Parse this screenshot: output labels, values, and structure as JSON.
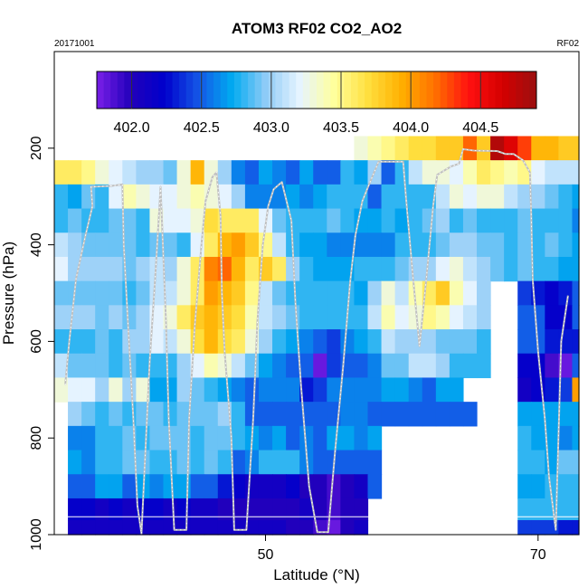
{
  "chart_data": {
    "type": "heatmap",
    "title": "ATOM3 RF02 CO2_AO2",
    "left_note": "20171001",
    "right_note": "RF02",
    "xlabel": "Latitude (°N)",
    "ylabel": "Pressure (hPa)",
    "xlim": [
      34.5,
      73.0
    ],
    "ylim": [
      1000,
      0
    ],
    "x_ticks": [
      50,
      70
    ],
    "y_ticks": [
      200,
      400,
      600,
      800,
      1000
    ],
    "colorbar": {
      "range": [
        401.75,
        404.9
      ],
      "ticks": [
        402.0,
        402.5,
        403.0,
        403.5,
        404.0,
        404.5
      ],
      "tick_labels": [
        "402.0",
        "402.5",
        "403.0",
        "403.5",
        "404.0",
        "404.5"
      ],
      "colors": [
        "#7a1fe8",
        "#2200bb",
        "#0000cc",
        "#1456e6",
        "#00aaf0",
        "#90ccf7",
        "#e6f4ff",
        "#ffff9e",
        "#ffe040",
        "#ffb000",
        "#ff7000",
        "#ff1010",
        "#d40000",
        "#9a1010"
      ]
    },
    "levels_hPa": [
      200,
      250,
      300,
      350,
      400,
      450,
      500,
      550,
      600,
      650,
      700,
      750,
      800,
      850,
      900,
      950,
      990
    ],
    "lat_edges": [
      34.5,
      35.5,
      36.5,
      37.5,
      38.5,
      39.5,
      40.5,
      41.5,
      42.5,
      43.5,
      44.5,
      45.5,
      46.5,
      47.5,
      48.5,
      49.5,
      50.5,
      51.5,
      52.5,
      53.5,
      54.5,
      55.5,
      56.5,
      57.5,
      58.5,
      59.5,
      60.5,
      61.5,
      62.5,
      63.5,
      64.5,
      65.5,
      66.5,
      67.5,
      68.5,
      69.5,
      70.5,
      71.5,
      72.5,
      73.0
    ],
    "co2_ppm": [
      [
        null,
        null,
        null,
        null,
        null,
        null,
        null,
        null,
        null,
        null,
        null,
        null,
        null,
        null,
        null,
        null,
        null,
        null,
        null,
        null,
        null,
        null,
        403.3,
        403.4,
        403.5,
        403.6,
        403.7,
        403.7,
        403.8,
        403.8,
        404.2,
        403.8,
        404.8,
        404.6,
        404.3,
        403.9,
        403.9,
        403.8,
        403.8
      ],
      [
        403.6,
        403.6,
        403.5,
        403.3,
        403.2,
        403.1,
        403.0,
        403.0,
        402.9,
        403.3,
        403.9,
        403.3,
        403.0,
        402.6,
        402.5,
        402.7,
        402.6,
        402.5,
        402.7,
        402.5,
        402.5,
        402.8,
        402.7,
        403.0,
        402.5,
        402.8,
        403.1,
        403.3,
        403.3,
        403.2,
        403.4,
        403.6,
        403.5,
        403.4,
        403.5,
        403.2,
        403.1,
        403.1,
        403.1
      ],
      [
        402.8,
        402.7,
        402.9,
        402.8,
        403.2,
        403.4,
        403.3,
        403.2,
        403.2,
        403.3,
        403.4,
        403.3,
        403.2,
        403.0,
        402.6,
        402.6,
        402.6,
        402.7,
        402.6,
        402.7,
        402.8,
        402.8,
        402.8,
        402.5,
        402.8,
        402.8,
        402.8,
        402.8,
        403.1,
        403.3,
        403.2,
        403.3,
        403.3,
        403.1,
        403.0,
        403.0,
        402.9,
        402.8,
        402.7
      ],
      [
        402.8,
        402.9,
        402.8,
        402.8,
        402.9,
        402.9,
        402.8,
        403.3,
        403.2,
        403.2,
        403.3,
        403.7,
        403.6,
        403.6,
        403.6,
        403.2,
        402.9,
        402.8,
        402.8,
        402.8,
        402.9,
        402.8,
        402.7,
        402.7,
        402.8,
        402.7,
        402.8,
        402.9,
        403.0,
        402.8,
        402.9,
        402.8,
        402.8,
        402.8,
        402.9,
        402.8,
        402.8,
        402.8,
        402.6
      ],
      [
        403.1,
        403.0,
        402.9,
        402.9,
        402.9,
        402.9,
        402.8,
        402.9,
        402.9,
        402.8,
        403.2,
        403.6,
        403.9,
        404.0,
        403.8,
        403.5,
        403.1,
        402.8,
        402.7,
        402.7,
        402.6,
        402.6,
        402.6,
        402.6,
        402.6,
        402.8,
        402.8,
        402.8,
        402.9,
        403.0,
        403.0,
        402.9,
        402.9,
        402.8,
        402.9,
        402.8,
        402.9,
        402.8,
        402.7
      ],
      [
        403.2,
        403.0,
        403.0,
        403.0,
        403.0,
        402.9,
        403.0,
        403.1,
        403.0,
        403.3,
        403.6,
        404.1,
        404.2,
        403.9,
        403.6,
        403.8,
        403.6,
        403.0,
        402.8,
        402.7,
        402.7,
        402.7,
        402.8,
        402.8,
        402.8,
        402.9,
        403.0,
        403.0,
        403.2,
        403.3,
        403.1,
        403.0,
        402.9,
        402.8,
        402.9,
        402.8,
        402.8,
        402.7,
        402.7
      ],
      [
        402.9,
        402.9,
        402.9,
        402.9,
        402.9,
        402.8,
        402.9,
        403.1,
        403.1,
        403.3,
        403.6,
        404.0,
        403.9,
        403.8,
        403.5,
        403.1,
        402.9,
        402.8,
        402.8,
        402.8,
        402.8,
        402.8,
        402.7,
        403.0,
        403.3,
        403.1,
        403.4,
        403.6,
        403.8,
        403.4,
        403.2,
        403.0,
        null,
        null,
        402.4,
        402.3,
        402.2,
        402.3,
        402.5
      ],
      [
        403.0,
        403.0,
        403.0,
        402.9,
        403.0,
        402.9,
        403.0,
        403.2,
        403.3,
        403.6,
        403.8,
        403.9,
        403.8,
        403.7,
        403.4,
        403.1,
        403.0,
        402.9,
        402.8,
        402.8,
        402.8,
        402.8,
        402.8,
        403.1,
        403.4,
        403.2,
        403.3,
        403.5,
        403.4,
        403.2,
        403.1,
        403.0,
        null,
        null,
        402.5,
        402.5,
        402.2,
        402.2,
        402.5
      ],
      [
        402.8,
        402.8,
        402.8,
        402.9,
        402.8,
        403.0,
        403.0,
        403.2,
        403.1,
        403.3,
        403.7,
        403.9,
        403.7,
        403.6,
        403.3,
        403.0,
        402.8,
        402.7,
        402.6,
        402.5,
        402.4,
        402.6,
        402.7,
        402.8,
        403.1,
        403.0,
        403.0,
        403.0,
        402.9,
        402.9,
        402.9,
        402.8,
        null,
        null,
        402.5,
        402.5,
        402.3,
        402.3,
        402.3
      ],
      [
        403.1,
        402.9,
        402.9,
        402.9,
        402.8,
        402.9,
        402.8,
        402.8,
        402.8,
        403.0,
        403.2,
        403.4,
        403.3,
        403.1,
        402.9,
        402.7,
        402.6,
        402.5,
        402.5,
        401.8,
        402.4,
        402.5,
        402.5,
        402.6,
        402.9,
        402.9,
        403.1,
        403.1,
        403.0,
        402.8,
        402.8,
        402.8,
        null,
        null,
        402.2,
        402.2,
        401.9,
        401.8,
        402.5
      ],
      [
        403.3,
        403.2,
        403.2,
        403.0,
        403.3,
        403.0,
        403.3,
        402.7,
        402.7,
        403.0,
        402.9,
        402.8,
        402.7,
        402.6,
        402.5,
        402.6,
        402.6,
        402.6,
        402.3,
        402.4,
        402.6,
        402.6,
        402.6,
        402.6,
        402.7,
        402.7,
        402.6,
        402.5,
        402.7,
        402.7,
        null,
        null,
        null,
        null,
        402.1,
        402.2,
        402.3,
        402.4,
        404.0
      ],
      [
        null,
        403.0,
        402.9,
        402.8,
        402.9,
        402.8,
        402.9,
        402.9,
        402.8,
        402.9,
        402.9,
        402.9,
        403.0,
        402.8,
        402.5,
        402.5,
        402.5,
        402.5,
        402.5,
        402.5,
        402.5,
        402.6,
        402.6,
        402.5,
        402.5,
        402.5,
        402.5,
        402.5,
        402.5,
        402.5,
        402.5,
        null,
        null,
        null,
        402.7,
        402.7,
        402.7,
        402.7,
        402.7
      ],
      [
        null,
        402.6,
        402.6,
        402.8,
        402.8,
        402.9,
        402.8,
        402.9,
        402.9,
        402.9,
        402.8,
        402.9,
        402.9,
        402.8,
        402.7,
        402.6,
        402.7,
        402.5,
        402.6,
        402.5,
        402.7,
        402.7,
        402.6,
        402.7,
        null,
        null,
        null,
        null,
        null,
        null,
        null,
        null,
        null,
        null,
        402.8,
        402.7,
        402.7,
        402.6,
        402.7
      ],
      [
        null,
        402.7,
        402.6,
        402.8,
        402.8,
        402.9,
        402.9,
        402.8,
        402.8,
        402.9,
        402.8,
        402.9,
        402.8,
        402.5,
        402.6,
        402.8,
        402.8,
        402.8,
        402.6,
        402.5,
        402.5,
        402.5,
        402.5,
        402.5,
        null,
        null,
        null,
        null,
        null,
        null,
        null,
        null,
        null,
        null,
        402.8,
        402.8,
        402.7,
        402.9,
        402.9
      ],
      [
        null,
        402.5,
        402.5,
        402.7,
        402.7,
        402.5,
        402.7,
        402.6,
        402.7,
        402.7,
        402.5,
        402.5,
        402.3,
        402.2,
        402.1,
        402.1,
        402.1,
        402.2,
        402.0,
        402.0,
        401.9,
        402.0,
        402.1,
        402.5,
        null,
        null,
        null,
        null,
        null,
        null,
        null,
        null,
        null,
        null,
        402.7,
        402.7,
        402.8,
        402.8,
        402.8
      ],
      [
        null,
        402.2,
        402.2,
        402.1,
        402.2,
        402.1,
        402.2,
        402.2,
        402.1,
        402.2,
        402.1,
        402.1,
        402.0,
        402.0,
        402.0,
        402.0,
        402.0,
        402.0,
        402.1,
        402.0,
        401.9,
        402.0,
        402.0,
        null,
        null,
        null,
        null,
        null,
        null,
        null,
        null,
        null,
        null,
        null,
        402.8,
        402.8,
        402.8,
        402.8,
        402.8
      ],
      [
        null,
        402.1,
        402.1,
        402.1,
        402.1,
        402.1,
        402.1,
        402.1,
        402.1,
        402.1,
        402.1,
        402.1,
        402.1,
        402.1,
        402.1,
        402.1,
        402.1,
        402.0,
        402.0,
        401.9,
        401.8,
        402.0,
        402.1,
        null,
        null,
        null,
        null,
        null,
        null,
        null,
        null,
        null,
        null,
        null,
        402.4,
        402.4,
        402.4,
        402.3,
        402.3
      ]
    ],
    "flight_track": [
      [
        35.3,
        690
      ],
      [
        35.6,
        600
      ],
      [
        36.1,
        470
      ],
      [
        36.8,
        380
      ],
      [
        37.3,
        320
      ],
      [
        37.2,
        280
      ],
      [
        38.7,
        278
      ],
      [
        39.5,
        275
      ],
      [
        39.6,
        400
      ],
      [
        39.9,
        560
      ],
      [
        40.3,
        760
      ],
      [
        40.6,
        940
      ],
      [
        40.9,
        998
      ],
      [
        41.5,
        640
      ],
      [
        41.9,
        470
      ],
      [
        42.2,
        330
      ],
      [
        42.3,
        280
      ],
      [
        42.7,
        560
      ],
      [
        42.9,
        760
      ],
      [
        43.3,
        990
      ],
      [
        44.2,
        990
      ],
      [
        44.4,
        760
      ],
      [
        44.8,
        570
      ],
      [
        45.3,
        400
      ],
      [
        45.6,
        310
      ],
      [
        46.1,
        260
      ],
      [
        46.4,
        250
      ],
      [
        46.7,
        340
      ],
      [
        46.8,
        500
      ],
      [
        47.0,
        620
      ],
      [
        47.5,
        800
      ],
      [
        47.7,
        990
      ],
      [
        48.6,
        990
      ],
      [
        49.1,
        760
      ],
      [
        49.4,
        560
      ],
      [
        49.8,
        400
      ],
      [
        50.2,
        320
      ],
      [
        50.6,
        285
      ],
      [
        51.2,
        270
      ],
      [
        51.9,
        350
      ],
      [
        52.2,
        520
      ],
      [
        52.6,
        690
      ],
      [
        53.2,
        900
      ],
      [
        53.8,
        995
      ],
      [
        54.6,
        995
      ],
      [
        55.1,
        830
      ],
      [
        55.7,
        650
      ],
      [
        56.2,
        480
      ],
      [
        56.6,
        380
      ],
      [
        57.1,
        310
      ],
      [
        57.6,
        275
      ],
      [
        58.3,
        228
      ],
      [
        60.1,
        228
      ],
      [
        60.3,
        300
      ],
      [
        60.8,
        460
      ],
      [
        61.3,
        610
      ],
      [
        61.8,
        470
      ],
      [
        62.3,
        320
      ],
      [
        62.6,
        255
      ],
      [
        63.6,
        238
      ],
      [
        64.2,
        232
      ],
      [
        64.5,
        202
      ],
      [
        65.3,
        205
      ],
      [
        67.0,
        206
      ],
      [
        67.6,
        212
      ],
      [
        68.2,
        212
      ],
      [
        68.9,
        225
      ],
      [
        69.4,
        250
      ],
      [
        69.5,
        340
      ],
      [
        69.6,
        470
      ],
      [
        70.0,
        620
      ],
      [
        70.5,
        760
      ],
      [
        70.8,
        880
      ],
      [
        71.3,
        990
      ],
      [
        71.7,
        600
      ],
      [
        72.2,
        505
      ]
    ]
  }
}
